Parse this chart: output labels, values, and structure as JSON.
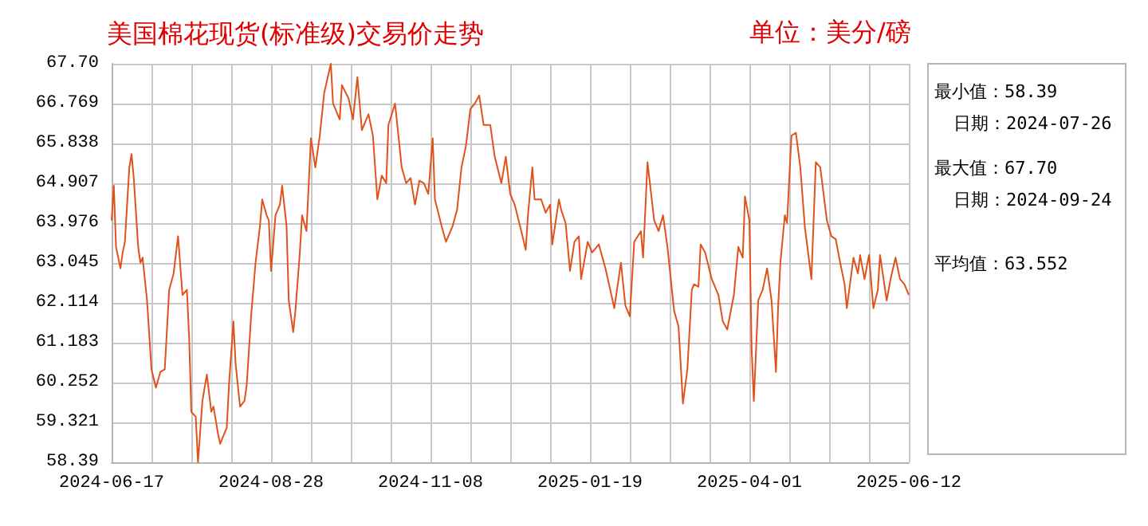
{
  "chart_data": {
    "type": "line",
    "title": "美国棉花现货(标准级)交易价走势",
    "subtitle": "单位：美分/磅",
    "annotations": [
      "最小值：58.39",
      "日期：2024-07-26",
      "最大值：67.70",
      "日期：2024-09-24",
      "平均值：63.552"
    ],
    "x": [
      "2024-06-17",
      "2024-06-18",
      "2024-06-19",
      "2024-06-21",
      "2024-06-22",
      "2024-06-23",
      "2024-06-25",
      "2024-06-26",
      "2024-06-27",
      "2024-06-29",
      "2024-06-30",
      "2024-07-01",
      "2024-07-03",
      "2024-07-05",
      "2024-07-07",
      "2024-07-09",
      "2024-07-11",
      "2024-07-13",
      "2024-07-15",
      "2024-07-17",
      "2024-07-19",
      "2024-07-21",
      "2024-07-22",
      "2024-07-23",
      "2024-07-25",
      "2024-07-26",
      "2024-07-28",
      "2024-07-30",
      "2024-08-01",
      "2024-08-02",
      "2024-08-04",
      "2024-08-05",
      "2024-08-08",
      "2024-08-09",
      "2024-08-11",
      "2024-08-12",
      "2024-08-14",
      "2024-08-16",
      "2024-08-17",
      "2024-08-19",
      "2024-08-21",
      "2024-08-23",
      "2024-08-24",
      "2024-08-26",
      "2024-08-27",
      "2024-08-28",
      "2024-08-30",
      "2024-09-01",
      "2024-09-02",
      "2024-09-04",
      "2024-09-05",
      "2024-09-07",
      "2024-09-08",
      "2024-09-10",
      "2024-09-11",
      "2024-09-13",
      "2024-09-15",
      "2024-09-17",
      "2024-09-19",
      "2024-09-21",
      "2024-09-24",
      "2024-09-25",
      "2024-09-28",
      "2024-09-29",
      "2024-10-02",
      "2024-10-04",
      "2024-10-06",
      "2024-10-08",
      "2024-10-11",
      "2024-10-13",
      "2024-10-15",
      "2024-10-17",
      "2024-10-19",
      "2024-10-20",
      "2024-10-23",
      "2024-10-26",
      "2024-10-28",
      "2024-10-30",
      "2024-11-01",
      "2024-11-03",
      "2024-11-05",
      "2024-11-07",
      "2024-11-09",
      "2024-11-10",
      "2024-11-13",
      "2024-11-15",
      "2024-11-18",
      "2024-11-20",
      "2024-11-22",
      "2024-11-24",
      "2024-11-26",
      "2024-11-28",
      "2024-11-30",
      "2024-12-02",
      "2024-12-05",
      "2024-12-07",
      "2024-12-10",
      "2024-12-12",
      "2024-12-14",
      "2024-12-16",
      "2024-12-19",
      "2024-12-21",
      "2024-12-22",
      "2024-12-24",
      "2024-12-25",
      "2024-12-28",
      "2024-12-30",
      "2025-01-01",
      "2025-01-02",
      "2025-01-05",
      "2025-01-06",
      "2025-01-08",
      "2025-01-10",
      "2025-01-12",
      "2025-01-14",
      "2025-01-15",
      "2025-01-18",
      "2025-01-20",
      "2025-01-23",
      "2025-01-26",
      "2025-01-30",
      "2025-02-02",
      "2025-02-04",
      "2025-02-06",
      "2025-02-08",
      "2025-02-11",
      "2025-02-12",
      "2025-02-14",
      "2025-02-17",
      "2025-02-19",
      "2025-02-21",
      "2025-02-23",
      "2025-02-26",
      "2025-02-28",
      "2025-03-02",
      "2025-03-04",
      "2025-03-06",
      "2025-03-07",
      "2025-03-09",
      "2025-03-10",
      "2025-03-12",
      "2025-03-15",
      "2025-03-18",
      "2025-03-20",
      "2025-03-22",
      "2025-03-25",
      "2025-03-27",
      "2025-03-29",
      "2025-03-30",
      "2025-04-01",
      "2025-04-02",
      "2025-04-03",
      "2025-04-05",
      "2025-04-07",
      "2025-04-09",
      "2025-04-11",
      "2025-04-13",
      "2025-04-14",
      "2025-04-15",
      "2025-04-17",
      "2025-04-18",
      "2025-04-20",
      "2025-04-22",
      "2025-04-24",
      "2025-04-26",
      "2025-04-29",
      "2025-05-01",
      "2025-05-03",
      "2025-05-06",
      "2025-05-08",
      "2025-05-10",
      "2025-05-12",
      "2025-05-14",
      "2025-05-15",
      "2025-05-18",
      "2025-05-20",
      "2025-05-21",
      "2025-05-23",
      "2025-05-25",
      "2025-05-27",
      "2025-05-29",
      "2025-05-30",
      "2025-06-02",
      "2025-06-04",
      "2025-06-06",
      "2025-06-08",
      "2025-06-10",
      "2025-06-12"
    ],
    "values": [
      64.04,
      64.85,
      63.42,
      62.92,
      63.29,
      63.54,
      65.28,
      65.59,
      65.03,
      63.42,
      63.05,
      63.17,
      62.17,
      60.56,
      60.13,
      60.5,
      60.56,
      62.42,
      62.8,
      63.67,
      62.3,
      62.42,
      61.31,
      59.57,
      59.45,
      58.39,
      59.82,
      60.44,
      59.57,
      59.69,
      59.07,
      58.82,
      59.2,
      60.19,
      61.68,
      60.69,
      59.69,
      59.82,
      60.19,
      61.81,
      63.05,
      63.91,
      64.53,
      64.16,
      64.04,
      62.86,
      64.16,
      64.41,
      64.85,
      63.91,
      62.17,
      61.43,
      61.93,
      63.29,
      64.16,
      63.79,
      65.96,
      65.28,
      66.02,
      67.02,
      67.7,
      66.77,
      66.4,
      67.2,
      66.89,
      66.4,
      67.39,
      66.15,
      66.52,
      66.02,
      64.53,
      65.09,
      64.91,
      66.27,
      66.77,
      65.28,
      64.91,
      65.03,
      64.41,
      64.97,
      64.91,
      64.66,
      65.96,
      64.53,
      63.91,
      63.54,
      63.91,
      64.29,
      65.28,
      65.78,
      66.64,
      66.77,
      66.96,
      66.27,
      66.27,
      65.53,
      64.91,
      65.53,
      64.66,
      64.41,
      63.79,
      63.35,
      64.16,
      65.28,
      64.53,
      64.53,
      64.22,
      64.41,
      63.48,
      64.53,
      64.29,
      63.98,
      62.86,
      63.54,
      63.67,
      62.67,
      63.54,
      63.29,
      63.48,
      62.92,
      61.99,
      63.05,
      62.05,
      61.8,
      63.54,
      63.79,
      63.17,
      65.4,
      64.04,
      63.79,
      64.16,
      63.42,
      61.93,
      61.56,
      59.76,
      60.56,
      62.42,
      62.55,
      62.49,
      63.48,
      63.29,
      62.67,
      62.3,
      61.68,
      61.49,
      62.3,
      63.42,
      63.17,
      64.6,
      64.04,
      61.06,
      59.82,
      62.17,
      62.42,
      62.92,
      62.17,
      60.5,
      62.05,
      63.05,
      64.16,
      63.98,
      66.02,
      66.09,
      65.28,
      63.91,
      62.67,
      65.4,
      65.28,
      64.04,
      63.67,
      63.6,
      63.05,
      62.55,
      61.99,
      63.17,
      62.8,
      63.23,
      62.67,
      63.23,
      61.99,
      62.42,
      63.23,
      62.17,
      62.73,
      63.17,
      62.67,
      62.55,
      62.3
    ],
    "color": "#e0521c",
    "marker": "none",
    "grid": true,
    "xlim": [
      "2024-06-17",
      "2025-06-12"
    ],
    "xticks": [
      "2024-06-17",
      {
        "value": "2024-07-05",
        "label": null
      },
      {
        "value": "2024-07-23",
        "label": null
      },
      {
        "value": "2024-08-10",
        "label": null
      },
      "2024-08-28",
      {
        "value": "2024-09-15",
        "label": null
      },
      {
        "value": "2024-10-03",
        "label": null
      },
      {
        "value": "2024-10-21",
        "label": null
      },
      "2024-11-08",
      {
        "value": "2024-11-26",
        "label": null
      },
      {
        "value": "2024-12-14",
        "label": null
      },
      {
        "value": "2025-01-01",
        "label": null
      },
      "2025-01-19",
      {
        "value": "2025-02-06",
        "label": null
      },
      {
        "value": "2025-02-24",
        "label": null
      },
      {
        "value": "2025-03-14",
        "label": null
      },
      "2025-04-01",
      {
        "value": "2025-04-19",
        "label": null
      },
      {
        "value": "2025-05-07",
        "label": null
      },
      {
        "value": "2025-05-25",
        "label": null
      },
      "2025-06-12"
    ],
    "ylim": [
      58.39,
      67.7
    ],
    "yticks": [
      {
        "value": 58.39,
        "label": "58.39"
      },
      59.321,
      60.252,
      61.183,
      62.114,
      63.045,
      63.976,
      64.907,
      65.838,
      66.769,
      {
        "value": 67.7,
        "label": "67.70"
      }
    ]
  }
}
